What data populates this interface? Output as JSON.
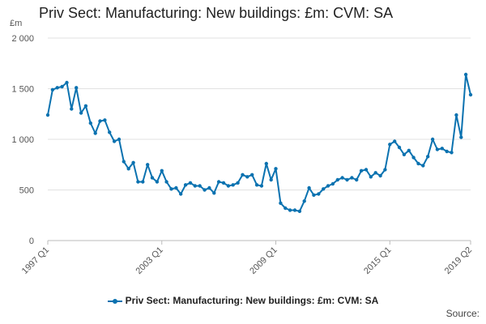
{
  "chart_data": {
    "type": "line",
    "title": "Priv Sect: Manufacturing: New buildings: £m: CVM: SA",
    "ylabel": "£m",
    "xlabel": "",
    "ylim": [
      0,
      2000
    ],
    "y_ticks": [
      0,
      500,
      1000,
      1500,
      2000
    ],
    "y_tick_labels": [
      "0",
      "500",
      "1 000",
      "1 500",
      "2 000"
    ],
    "x_ticks": [
      "1997 Q1",
      "2003 Q1",
      "2009 Q1",
      "2015 Q1",
      "2019 Q2"
    ],
    "grid": true,
    "legend_position": "bottom",
    "color": "#0b72b0",
    "series": [
      {
        "name": "Priv Sect: Manufacturing: New buildings: £m: CVM: SA",
        "x": [
          "1997 Q1",
          "1997 Q2",
          "1997 Q3",
          "1997 Q4",
          "1998 Q1",
          "1998 Q2",
          "1998 Q3",
          "1998 Q4",
          "1999 Q1",
          "1999 Q2",
          "1999 Q3",
          "1999 Q4",
          "2000 Q1",
          "2000 Q2",
          "2000 Q3",
          "2000 Q4",
          "2001 Q1",
          "2001 Q2",
          "2001 Q3",
          "2001 Q4",
          "2002 Q1",
          "2002 Q2",
          "2002 Q3",
          "2002 Q4",
          "2003 Q1",
          "2003 Q2",
          "2003 Q3",
          "2003 Q4",
          "2004 Q1",
          "2004 Q2",
          "2004 Q3",
          "2004 Q4",
          "2005 Q1",
          "2005 Q2",
          "2005 Q3",
          "2005 Q4",
          "2006 Q1",
          "2006 Q2",
          "2006 Q3",
          "2006 Q4",
          "2007 Q1",
          "2007 Q2",
          "2007 Q3",
          "2007 Q4",
          "2008 Q1",
          "2008 Q2",
          "2008 Q3",
          "2008 Q4",
          "2009 Q1",
          "2009 Q2",
          "2009 Q3",
          "2009 Q4",
          "2010 Q1",
          "2010 Q2",
          "2010 Q3",
          "2010 Q4",
          "2011 Q1",
          "2011 Q2",
          "2011 Q3",
          "2011 Q4",
          "2012 Q1",
          "2012 Q2",
          "2012 Q3",
          "2012 Q4",
          "2013 Q1",
          "2013 Q2",
          "2013 Q3",
          "2013 Q4",
          "2014 Q1",
          "2014 Q2",
          "2014 Q3",
          "2014 Q4",
          "2015 Q1",
          "2015 Q2",
          "2015 Q3",
          "2015 Q4",
          "2016 Q1",
          "2016 Q2",
          "2016 Q3",
          "2016 Q4",
          "2017 Q1",
          "2017 Q2",
          "2017 Q3",
          "2017 Q4",
          "2018 Q1",
          "2018 Q2",
          "2018 Q3",
          "2018 Q4",
          "2019 Q1",
          "2019 Q2"
        ],
        "values": [
          1240,
          1490,
          1510,
          1520,
          1560,
          1300,
          1510,
          1260,
          1330,
          1160,
          1060,
          1180,
          1190,
          1070,
          980,
          1000,
          780,
          710,
          770,
          580,
          580,
          750,
          620,
          580,
          690,
          580,
          510,
          520,
          460,
          550,
          570,
          540,
          540,
          500,
          520,
          470,
          580,
          570,
          540,
          550,
          570,
          650,
          630,
          650,
          550,
          540,
          760,
          600,
          710,
          370,
          320,
          300,
          300,
          290,
          390,
          520,
          450,
          460,
          510,
          540,
          560,
          600,
          620,
          600,
          620,
          600,
          690,
          700,
          630,
          670,
          640,
          700,
          950,
          980,
          920,
          850,
          890,
          820,
          760,
          740,
          830,
          1000,
          900,
          910,
          880,
          870,
          1240,
          1020,
          1640,
          1440
        ]
      }
    ],
    "legend_label": "Priv Sect: Manufacturing: New buildings: £m: CVM: SA",
    "source_label": "Source:"
  }
}
